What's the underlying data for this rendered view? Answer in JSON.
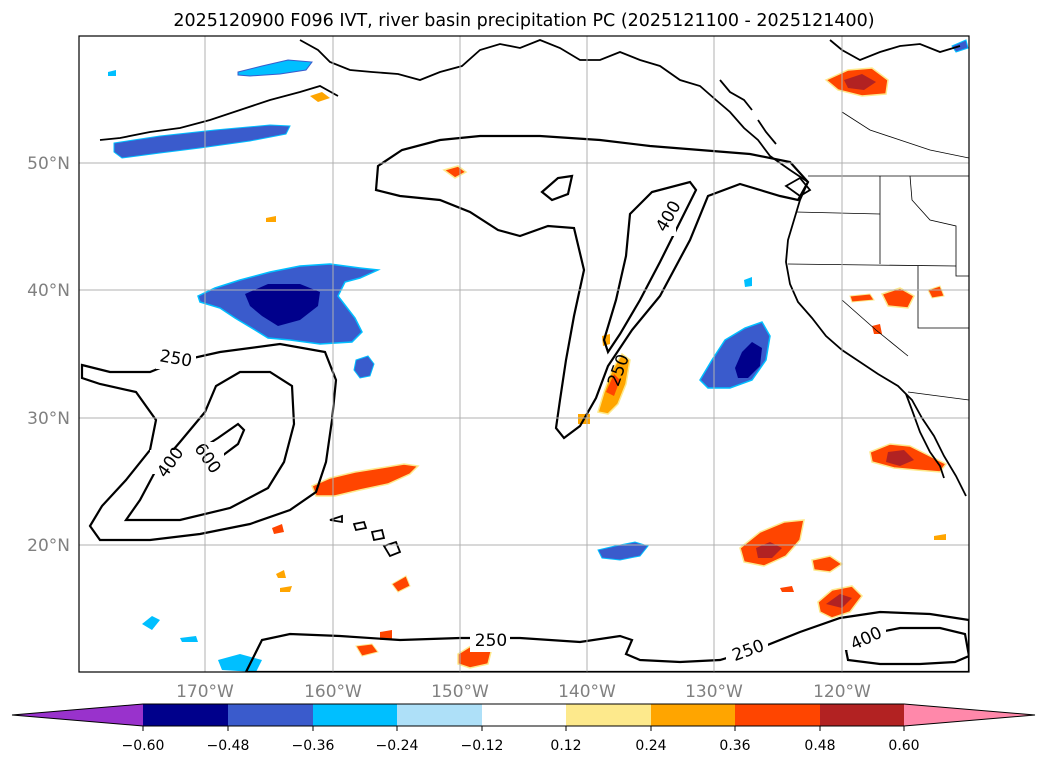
{
  "title": "2025120900 F096 IVT, river basin precipitation PC (2025121100 - 2025121400)",
  "map": {
    "lon_range": [
      -180,
      -110
    ],
    "lat_range": [
      10,
      60
    ],
    "lat_labels": [
      "50°N",
      "40°N",
      "30°N",
      "20°N"
    ],
    "lon_labels": [
      "170°W",
      "160°W",
      "150°W",
      "140°W",
      "130°W",
      "120°W"
    ],
    "contour_labels": [
      {
        "text": "250",
        "rotation": 10
      },
      {
        "text": "400",
        "rotation": -55
      },
      {
        "text": "600",
        "rotation": 55
      },
      {
        "text": "400",
        "rotation": -60
      },
      {
        "text": "250",
        "rotation": -70
      },
      {
        "text": "250",
        "rotation": 0
      },
      {
        "text": "250",
        "rotation": -20
      },
      {
        "text": "400",
        "rotation": -25
      }
    ],
    "contour_levels": [
      250,
      400,
      600
    ]
  },
  "colorbar": {
    "ticks": [
      "−0.60",
      "−0.48",
      "−0.36",
      "−0.24",
      "−0.12",
      "0.12",
      "0.24",
      "0.36",
      "0.48",
      "0.60"
    ],
    "colors": [
      "#9932cc",
      "#00008b",
      "#3a5bcc",
      "#00bfff",
      "#aee0f8",
      "#ffffff",
      "#fde98c",
      "#ffa500",
      "#ff4500",
      "#b22222",
      "#ff88aa"
    ]
  },
  "palette": {
    "n4": "#00008b",
    "n3": "#3a5bcc",
    "n2": "#00bfff",
    "n1": "#aee0f8",
    "p1": "#fde98c",
    "p2": "#ffa500",
    "p3": "#ff4500",
    "p4": "#b22222",
    "p5": "#ff88aa"
  }
}
